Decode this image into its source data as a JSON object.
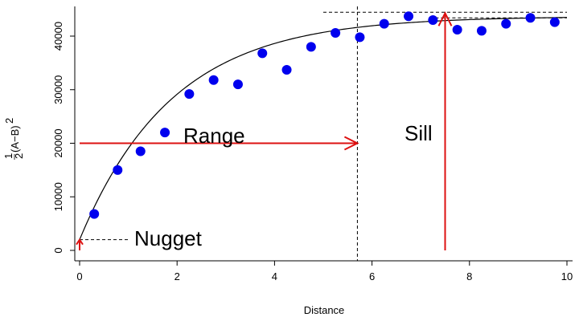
{
  "chart_data": {
    "type": "scatter",
    "title": "",
    "xlabel": "Distance",
    "ylabel": "½(A−B)²",
    "ylabel_parts": {
      "num": "1",
      "den": "2",
      "expr": "(A−B)",
      "sup": "2"
    },
    "xlim": [
      0,
      10
    ],
    "ylim": [
      0,
      45000
    ],
    "x_ticks": [
      0,
      2,
      4,
      6,
      8,
      10
    ],
    "y_ticks": [
      0,
      10000,
      20000,
      30000,
      40000
    ],
    "grid": false,
    "points": [
      {
        "x": 0.3,
        "y": 6800
      },
      {
        "x": 0.78,
        "y": 15000
      },
      {
        "x": 1.25,
        "y": 18500
      },
      {
        "x": 1.75,
        "y": 22000
      },
      {
        "x": 2.25,
        "y": 29200
      },
      {
        "x": 2.75,
        "y": 31800
      },
      {
        "x": 3.25,
        "y": 31000
      },
      {
        "x": 3.75,
        "y": 36800
      },
      {
        "x": 4.25,
        "y": 33700
      },
      {
        "x": 4.75,
        "y": 38000
      },
      {
        "x": 5.25,
        "y": 40600
      },
      {
        "x": 5.75,
        "y": 39800
      },
      {
        "x": 6.25,
        "y": 42300
      },
      {
        "x": 6.75,
        "y": 43700
      },
      {
        "x": 7.25,
        "y": 43000
      },
      {
        "x": 7.75,
        "y": 41200
      },
      {
        "x": 8.25,
        "y": 41000
      },
      {
        "x": 8.75,
        "y": 42300
      },
      {
        "x": 9.25,
        "y": 43400
      },
      {
        "x": 9.75,
        "y": 42600
      }
    ],
    "point_color": "#0000ee",
    "model_curve": {
      "nugget": 2000,
      "sill": 43700,
      "range": 5.7,
      "type": "exponential",
      "color": "#000000"
    },
    "annotations": {
      "range_label": "Range",
      "sill_label": "Sill",
      "nugget_label": "Nugget",
      "arrow_color": "#dd1111",
      "range_arrow": {
        "x0": 0,
        "x1": 5.7,
        "y": 20000
      },
      "sill_arrow": {
        "x": 7.5,
        "y0": 0,
        "y1": 43700
      },
      "nugget_arrow": {
        "x": 0,
        "y0": 0,
        "y1": 2000
      },
      "range_line_x": 5.7,
      "sill_line_y": 43700,
      "nugget_line": {
        "x1": 1.0,
        "y": 2000
      }
    }
  }
}
